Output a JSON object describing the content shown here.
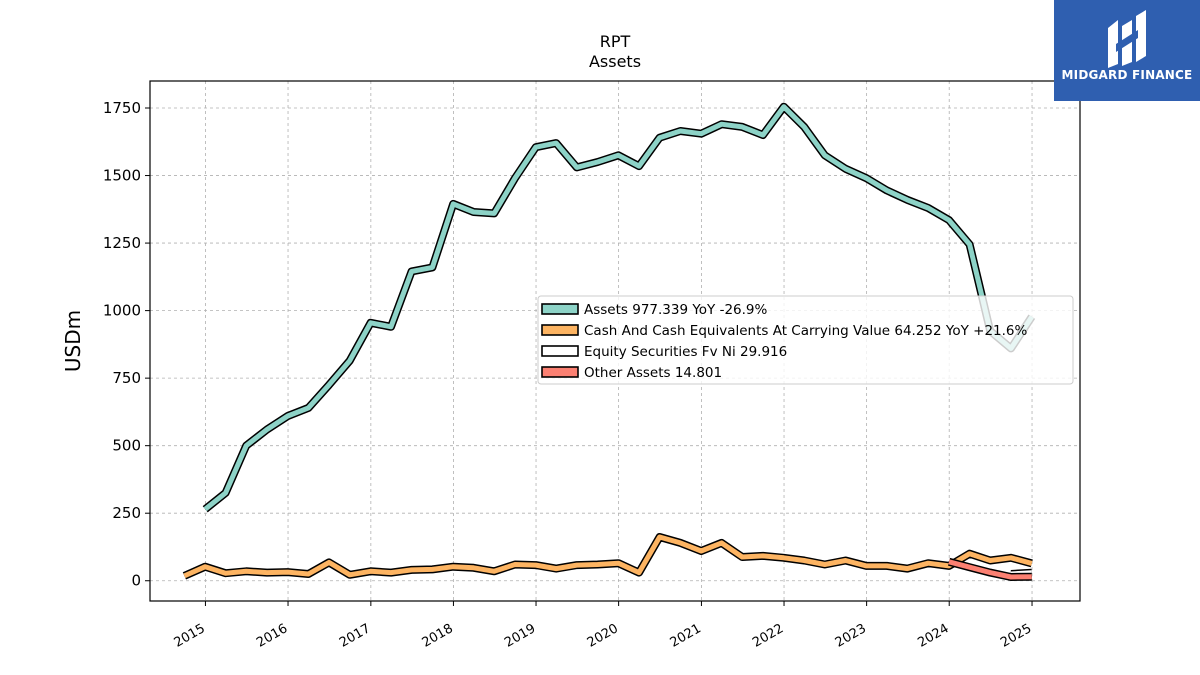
{
  "chart_data": {
    "type": "line",
    "title": "RPT",
    "subtitle": "Assets",
    "xlabel": "",
    "ylabel": "USDm",
    "xlim": [
      "2014-05-01",
      "2025-08-01"
    ],
    "ylim": [
      -75,
      1850
    ],
    "y_ticks": [
      0,
      250,
      500,
      750,
      1000,
      1250,
      1500,
      1750
    ],
    "x_ticks": [
      "2015",
      "2016",
      "2017",
      "2018",
      "2019",
      "2020",
      "2021",
      "2022",
      "2023",
      "2024",
      "2025"
    ],
    "grid": true,
    "legend_position": "center-right",
    "series": [
      {
        "name": "Assets",
        "legend_label": "Assets  977.339 YoY -26.9%",
        "color": "#8dd3c7",
        "dates": [
          "2014-12-31",
          "2015-03-31",
          "2015-06-30",
          "2015-09-30",
          "2015-12-31",
          "2016-03-31",
          "2016-06-30",
          "2016-09-30",
          "2016-12-31",
          "2017-03-31",
          "2017-06-30",
          "2017-09-30",
          "2017-12-31",
          "2018-03-31",
          "2018-06-30",
          "2018-09-30",
          "2018-12-31",
          "2019-03-31",
          "2019-06-30",
          "2019-09-30",
          "2019-12-31",
          "2020-03-31",
          "2020-06-30",
          "2020-09-30",
          "2020-12-31",
          "2021-03-31",
          "2021-06-30",
          "2021-09-30",
          "2021-12-31",
          "2022-03-31",
          "2022-06-30",
          "2022-09-30",
          "2022-12-31",
          "2023-03-31",
          "2023-06-30",
          "2023-09-30",
          "2023-12-31",
          "2024-03-31",
          "2024-06-30",
          "2024-09-30",
          "2024-12-31"
        ],
        "values": [
          265,
          325,
          500,
          560,
          610,
          640,
          725,
          815,
          955,
          940,
          1145,
          1160,
          1395,
          1365,
          1360,
          1490,
          1605,
          1620,
          1530,
          1550,
          1575,
          1535,
          1640,
          1665,
          1655,
          1690,
          1680,
          1650,
          1755,
          1680,
          1575,
          1525,
          1490,
          1445,
          1410,
          1380,
          1335,
          1245,
          925,
          860,
          977.339
        ]
      },
      {
        "name": "Cash And Cash Equivalents At Carrying Value",
        "legend_label": "Cash And Cash Equivalents At Carrying Value  64.252 YoY +21.6%",
        "color": "#fdb462",
        "dates": [
          "2014-09-30",
          "2014-12-31",
          "2015-03-31",
          "2015-06-30",
          "2015-09-30",
          "2015-12-31",
          "2016-03-31",
          "2016-06-30",
          "2016-09-30",
          "2016-12-31",
          "2017-03-31",
          "2017-06-30",
          "2017-09-30",
          "2017-12-31",
          "2018-03-31",
          "2018-06-30",
          "2018-09-30",
          "2018-12-31",
          "2019-03-31",
          "2019-06-30",
          "2019-09-30",
          "2019-12-31",
          "2020-03-31",
          "2020-06-30",
          "2020-09-30",
          "2020-12-31",
          "2021-03-31",
          "2021-06-30",
          "2021-09-30",
          "2021-12-31",
          "2022-03-31",
          "2022-06-30",
          "2022-09-30",
          "2022-12-31",
          "2023-03-31",
          "2023-06-30",
          "2023-09-30",
          "2023-12-31",
          "2024-03-31",
          "2024-06-30",
          "2024-09-30",
          "2024-12-31"
        ],
        "values": [
          18,
          52,
          28,
          35,
          30,
          32,
          25,
          68,
          22,
          35,
          30,
          40,
          42,
          52,
          48,
          35,
          60,
          58,
          45,
          58,
          60,
          65,
          30,
          162,
          140,
          110,
          140,
          88,
          92,
          85,
          75,
          60,
          75,
          55,
          55,
          45,
          65,
          55,
          100,
          75,
          85,
          64.252
        ]
      },
      {
        "name": "Equity Securities Fv Ni",
        "legend_label": "Equity Securities Fv Ni  29.916",
        "color": "#ffffff",
        "dates": [
          "2024-09-30",
          "2024-12-31"
        ],
        "values": [
          25,
          29.916
        ]
      },
      {
        "name": "Other Assets",
        "legend_label": "Other Assets  14.801",
        "color": "#fb8072",
        "dates": [
          "2023-12-31",
          "2024-03-31",
          "2024-06-30",
          "2024-09-30",
          "2024-12-31"
        ],
        "values": [
          70,
          50,
          30,
          14,
          14.801
        ]
      }
    ]
  },
  "logo": {
    "text": "MIDGARD FINANCE"
  }
}
